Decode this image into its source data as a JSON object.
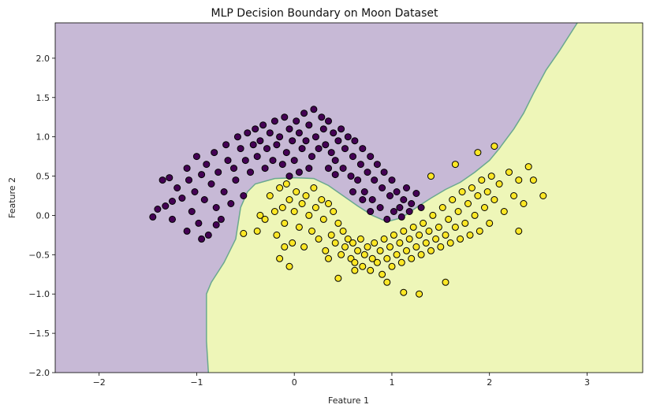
{
  "chart_data": {
    "type": "scatter",
    "title": "MLP Decision Boundary on Moon Dataset",
    "xlabel": "Feature 1",
    "ylabel": "Feature 2",
    "xlim": [
      -2.45,
      3.57
    ],
    "ylim": [
      -2.0,
      2.45
    ],
    "xticks": [
      -2,
      -1,
      0,
      1,
      2,
      3
    ],
    "yticks": [
      -2.0,
      -1.5,
      -1.0,
      -0.5,
      0.0,
      0.5,
      1.0,
      1.5,
      2.0
    ],
    "grid": false,
    "colors": {
      "region_class0": "#c7b9d6",
      "region_class1": "#eef6b8",
      "boundary": "#6aa88f",
      "class0_point": "#440154",
      "class1_point": "#fde725",
      "point_edge": "#000000"
    },
    "decision_boundary": [
      [
        -0.88,
        -2.0
      ],
      [
        -0.9,
        -1.6
      ],
      [
        -0.9,
        -1.0
      ],
      [
        -0.85,
        -0.85
      ],
      [
        -0.72,
        -0.6
      ],
      [
        -0.6,
        -0.3
      ],
      [
        -0.55,
        0.1
      ],
      [
        -0.48,
        0.3
      ],
      [
        -0.4,
        0.4
      ],
      [
        -0.2,
        0.47
      ],
      [
        0.0,
        0.48
      ],
      [
        0.2,
        0.47
      ],
      [
        0.35,
        0.38
      ],
      [
        0.5,
        0.25
      ],
      [
        0.65,
        0.12
      ],
      [
        0.8,
        0.0
      ],
      [
        0.95,
        -0.08
      ],
      [
        1.1,
        -0.03
      ],
      [
        1.25,
        0.1
      ],
      [
        1.4,
        0.22
      ],
      [
        1.55,
        0.33
      ],
      [
        1.7,
        0.42
      ],
      [
        1.85,
        0.55
      ],
      [
        2.0,
        0.7
      ],
      [
        2.1,
        0.85
      ],
      [
        2.25,
        1.1
      ],
      [
        2.35,
        1.3
      ],
      [
        2.45,
        1.55
      ],
      [
        2.58,
        1.85
      ],
      [
        2.72,
        2.1
      ],
      [
        2.9,
        2.45
      ]
    ],
    "series": [
      {
        "class": 0,
        "points": [
          [
            -1.45,
            -0.02
          ],
          [
            -1.35,
            0.45
          ],
          [
            -1.32,
            0.12
          ],
          [
            -1.28,
            0.48
          ],
          [
            -1.25,
            -0.05
          ],
          [
            -1.2,
            0.35
          ],
          [
            -1.15,
            0.22
          ],
          [
            -1.1,
            0.6
          ],
          [
            -1.08,
            0.45
          ],
          [
            -1.05,
            0.05
          ],
          [
            -1.02,
            0.3
          ],
          [
            -1.0,
            0.75
          ],
          [
            -0.98,
            -0.1
          ],
          [
            -0.95,
            0.52
          ],
          [
            -0.92,
            0.2
          ],
          [
            -0.9,
            0.65
          ],
          [
            -0.88,
            -0.25
          ],
          [
            -0.85,
            0.4
          ],
          [
            -0.82,
            0.8
          ],
          [
            -0.8,
            0.1
          ],
          [
            -0.78,
            0.55
          ],
          [
            -0.75,
            -0.05
          ],
          [
            -0.72,
            0.3
          ],
          [
            -0.7,
            0.9
          ],
          [
            -0.68,
            0.7
          ],
          [
            -0.65,
            0.15
          ],
          [
            -0.62,
            0.6
          ],
          [
            -0.6,
            0.45
          ],
          [
            -0.58,
            1.0
          ],
          [
            -0.55,
            0.85
          ],
          [
            -0.52,
            0.25
          ],
          [
            -0.5,
            0.7
          ],
          [
            -0.48,
            1.05
          ],
          [
            -0.45,
            0.55
          ],
          [
            -0.42,
            0.9
          ],
          [
            -0.4,
            1.1
          ],
          [
            -0.38,
            0.75
          ],
          [
            -0.35,
            0.95
          ],
          [
            -0.32,
            1.15
          ],
          [
            -0.3,
            0.6
          ],
          [
            -0.28,
            0.85
          ],
          [
            -0.25,
            1.05
          ],
          [
            -0.22,
            0.7
          ],
          [
            -0.2,
            1.2
          ],
          [
            -0.18,
            0.9
          ],
          [
            -0.15,
            1.0
          ],
          [
            -0.12,
            0.65
          ],
          [
            -0.1,
            1.25
          ],
          [
            -0.08,
            0.8
          ],
          [
            -0.05,
            1.1
          ],
          [
            -0.02,
            0.95
          ],
          [
            0.0,
            0.7
          ],
          [
            0.02,
            1.2
          ],
          [
            0.05,
            1.05
          ],
          [
            0.08,
            0.85
          ],
          [
            0.1,
            1.3
          ],
          [
            0.12,
            0.95
          ],
          [
            0.15,
            1.15
          ],
          [
            0.18,
            0.75
          ],
          [
            0.2,
            1.35
          ],
          [
            0.22,
            1.0
          ],
          [
            0.25,
            0.85
          ],
          [
            0.28,
            1.25
          ],
          [
            0.3,
            1.1
          ],
          [
            0.32,
            0.9
          ],
          [
            0.35,
            1.2
          ],
          [
            0.38,
            0.8
          ],
          [
            0.4,
            1.05
          ],
          [
            0.42,
            0.7
          ],
          [
            0.45,
            0.95
          ],
          [
            0.48,
            1.1
          ],
          [
            0.5,
            0.6
          ],
          [
            0.52,
            0.85
          ],
          [
            0.55,
            1.0
          ],
          [
            0.58,
            0.5
          ],
          [
            0.6,
            0.75
          ],
          [
            0.62,
            0.95
          ],
          [
            0.65,
            0.45
          ],
          [
            0.68,
            0.65
          ],
          [
            0.7,
            0.85
          ],
          [
            0.72,
            0.3
          ],
          [
            0.75,
            0.55
          ],
          [
            0.78,
            0.75
          ],
          [
            0.8,
            0.2
          ],
          [
            0.82,
            0.45
          ],
          [
            0.85,
            0.65
          ],
          [
            0.88,
            0.1
          ],
          [
            0.9,
            0.35
          ],
          [
            0.92,
            0.55
          ],
          [
            0.95,
            -0.05
          ],
          [
            0.98,
            0.25
          ],
          [
            1.0,
            0.45
          ],
          [
            1.02,
            0.05
          ],
          [
            1.05,
            0.3
          ],
          [
            1.08,
            0.1
          ],
          [
            1.1,
            -0.02
          ],
          [
            1.12,
            0.2
          ],
          [
            1.15,
            0.35
          ],
          [
            1.18,
            0.05
          ],
          [
            1.2,
            0.15
          ],
          [
            1.25,
            0.28
          ],
          [
            1.3,
            0.1
          ],
          [
            0.15,
            0.6
          ],
          [
            0.05,
            0.55
          ],
          [
            -0.05,
            0.5
          ],
          [
            0.35,
            0.6
          ],
          [
            0.42,
            0.52
          ],
          [
            0.6,
            0.3
          ],
          [
            0.7,
            0.2
          ],
          [
            0.78,
            0.05
          ],
          [
            -1.25,
            0.18
          ],
          [
            -1.1,
            -0.2
          ],
          [
            -0.95,
            -0.3
          ],
          [
            -0.8,
            -0.12
          ],
          [
            -1.4,
            0.08
          ]
        ]
      },
      {
        "class": 1,
        "points": [
          [
            -0.52,
            -0.23
          ],
          [
            -0.35,
            0.0
          ],
          [
            -0.3,
            -0.05
          ],
          [
            -0.25,
            0.25
          ],
          [
            -0.2,
            0.05
          ],
          [
            -0.18,
            -0.25
          ],
          [
            -0.15,
            0.35
          ],
          [
            -0.12,
            0.1
          ],
          [
            -0.1,
            -0.1
          ],
          [
            -0.08,
            0.4
          ],
          [
            -0.05,
            0.2
          ],
          [
            -0.02,
            -0.35
          ],
          [
            0.0,
            0.05
          ],
          [
            0.02,
            0.3
          ],
          [
            0.05,
            -0.15
          ],
          [
            0.08,
            0.15
          ],
          [
            0.1,
            -0.4
          ],
          [
            0.12,
            0.25
          ],
          [
            0.15,
            0.0
          ],
          [
            0.18,
            -0.2
          ],
          [
            0.2,
            0.35
          ],
          [
            0.22,
            0.1
          ],
          [
            0.25,
            -0.3
          ],
          [
            0.28,
            0.2
          ],
          [
            0.3,
            -0.05
          ],
          [
            0.32,
            -0.45
          ],
          [
            0.35,
            0.15
          ],
          [
            0.38,
            -0.25
          ],
          [
            0.4,
            0.05
          ],
          [
            0.42,
            -0.35
          ],
          [
            0.45,
            -0.1
          ],
          [
            0.48,
            -0.5
          ],
          [
            0.5,
            -0.2
          ],
          [
            0.52,
            -0.4
          ],
          [
            0.55,
            -0.3
          ],
          [
            0.58,
            -0.55
          ],
          [
            0.6,
            -0.35
          ],
          [
            0.62,
            -0.6
          ],
          [
            0.65,
            -0.45
          ],
          [
            0.68,
            -0.3
          ],
          [
            0.7,
            -0.65
          ],
          [
            0.72,
            -0.5
          ],
          [
            0.75,
            -0.4
          ],
          [
            0.78,
            -0.7
          ],
          [
            0.8,
            -0.55
          ],
          [
            0.82,
            -0.35
          ],
          [
            0.85,
            -0.6
          ],
          [
            0.88,
            -0.45
          ],
          [
            0.9,
            -0.75
          ],
          [
            0.92,
            -0.3
          ],
          [
            0.95,
            -0.55
          ],
          [
            0.98,
            -0.4
          ],
          [
            1.0,
            -0.65
          ],
          [
            1.02,
            -0.25
          ],
          [
            1.05,
            -0.5
          ],
          [
            1.08,
            -0.35
          ],
          [
            1.1,
            -0.6
          ],
          [
            1.12,
            -0.2
          ],
          [
            1.15,
            -0.45
          ],
          [
            1.18,
            -0.3
          ],
          [
            1.2,
            -0.55
          ],
          [
            1.22,
            -0.15
          ],
          [
            1.25,
            -0.4
          ],
          [
            1.28,
            -0.25
          ],
          [
            1.3,
            -0.5
          ],
          [
            1.32,
            -0.1
          ],
          [
            1.35,
            -0.35
          ],
          [
            1.38,
            -0.2
          ],
          [
            1.4,
            -0.45
          ],
          [
            1.42,
            0.0
          ],
          [
            1.45,
            -0.3
          ],
          [
            1.48,
            -0.15
          ],
          [
            1.5,
            -0.4
          ],
          [
            1.52,
            0.1
          ],
          [
            1.55,
            -0.25
          ],
          [
            1.58,
            -0.05
          ],
          [
            1.6,
            -0.35
          ],
          [
            1.62,
            0.2
          ],
          [
            1.65,
            -0.15
          ],
          [
            1.68,
            0.05
          ],
          [
            1.7,
            -0.3
          ],
          [
            1.72,
            0.3
          ],
          [
            1.75,
            -0.1
          ],
          [
            1.78,
            0.15
          ],
          [
            1.8,
            -0.25
          ],
          [
            1.82,
            0.35
          ],
          [
            1.85,
            0.0
          ],
          [
            1.88,
            0.25
          ],
          [
            1.9,
            -0.2
          ],
          [
            1.92,
            0.45
          ],
          [
            1.95,
            0.1
          ],
          [
            1.98,
            0.3
          ],
          [
            2.0,
            -0.1
          ],
          [
            2.02,
            0.5
          ],
          [
            2.05,
            0.2
          ],
          [
            2.1,
            0.4
          ],
          [
            2.15,
            0.05
          ],
          [
            2.2,
            0.55
          ],
          [
            2.25,
            0.25
          ],
          [
            2.3,
            0.45
          ],
          [
            2.35,
            0.15
          ],
          [
            2.4,
            0.62
          ],
          [
            2.45,
            0.45
          ],
          [
            2.55,
            0.25
          ],
          [
            2.3,
            -0.2
          ],
          [
            2.05,
            0.88
          ],
          [
            1.88,
            0.8
          ],
          [
            1.65,
            0.65
          ],
          [
            1.4,
            0.5
          ],
          [
            1.12,
            -0.98
          ],
          [
            1.28,
            -1.0
          ],
          [
            1.55,
            -0.85
          ],
          [
            0.95,
            -0.85
          ],
          [
            0.45,
            -0.8
          ],
          [
            0.62,
            -0.7
          ],
          [
            0.35,
            -0.55
          ],
          [
            -0.15,
            -0.55
          ],
          [
            -0.05,
            -0.65
          ],
          [
            -0.38,
            -0.2
          ],
          [
            -0.1,
            -0.4
          ]
        ]
      }
    ]
  }
}
